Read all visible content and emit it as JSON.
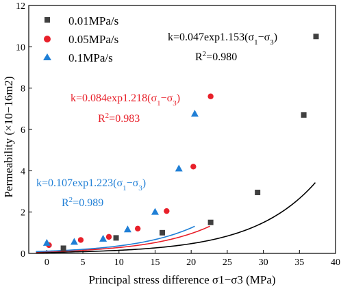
{
  "chart_data": {
    "type": "scatter",
    "xlabel": "Principal stress difference σ1−σ3 (MPa)",
    "ylabel": "Permeability (×10−16m2)",
    "xlim": [
      -2.5,
      40
    ],
    "ylim": [
      0,
      12
    ],
    "x_ticks": [
      0,
      5,
      10,
      15,
      20,
      25,
      30,
      35,
      40
    ],
    "y_ticks": [
      0,
      2,
      4,
      6,
      8,
      10,
      12
    ],
    "legend_position": "top-left",
    "grid": false,
    "series": [
      {
        "name": "0.01MPa/s",
        "marker": "square",
        "color": "#404040",
        "points": [
          [
            2.3,
            0.25
          ],
          [
            9.6,
            0.75
          ],
          [
            16.0,
            1.0
          ],
          [
            22.7,
            1.5
          ],
          [
            29.2,
            2.95
          ],
          [
            35.6,
            6.7
          ],
          [
            37.3,
            10.5
          ]
        ],
        "fit": {
          "a": 0.047,
          "b": 1.153,
          "x_range": [
            -1.5,
            37.2
          ]
        }
      },
      {
        "name": "0.05MPa/s",
        "marker": "circle",
        "color": "#e8202a",
        "points": [
          [
            0.3,
            0.4
          ],
          [
            4.7,
            0.65
          ],
          [
            8.6,
            0.8
          ],
          [
            12.6,
            1.2
          ],
          [
            16.6,
            2.05
          ],
          [
            20.3,
            4.2
          ],
          [
            22.7,
            7.6
          ]
        ],
        "fit": {
          "a": 0.084,
          "b": 1.218,
          "x_range": [
            -1.5,
            22.6
          ]
        }
      },
      {
        "name": "0.1MPa/s",
        "marker": "triangle",
        "color": "#1f7fd6",
        "points": [
          [
            0.0,
            0.5
          ],
          [
            3.8,
            0.55
          ],
          [
            7.8,
            0.7
          ],
          [
            11.2,
            1.15
          ],
          [
            15.0,
            2.0
          ],
          [
            18.3,
            4.1
          ],
          [
            20.5,
            6.75
          ]
        ],
        "fit": {
          "a": 0.107,
          "b": 1.223,
          "x_range": [
            -1.5,
            20.5
          ]
        }
      }
    ],
    "annotations": [
      {
        "series": 0,
        "eq_prefix": "k=0.047exp1.153(σ",
        "eq_s1": "1",
        "eq_mid": "−σ",
        "eq_s2": "3",
        "eq_suffix": ")",
        "r2_label": "R",
        "r2_sup": "2",
        "r2_value": "=0.980"
      },
      {
        "series": 1,
        "eq_prefix": "k=0.084exp1.218(σ",
        "eq_s1": "1",
        "eq_mid": "−σ",
        "eq_s2": "3",
        "eq_suffix": ")",
        "r2_label": "R",
        "r2_sup": "2",
        "r2_value": "=0.983"
      },
      {
        "series": 2,
        "eq_prefix": "k=0.107exp1.223(σ",
        "eq_s1": "1",
        "eq_mid": "−σ",
        "eq_s2": "3",
        "eq_suffix": ")",
        "r2_label": "R",
        "r2_sup": "2",
        "r2_value": "=0.989"
      }
    ]
  }
}
